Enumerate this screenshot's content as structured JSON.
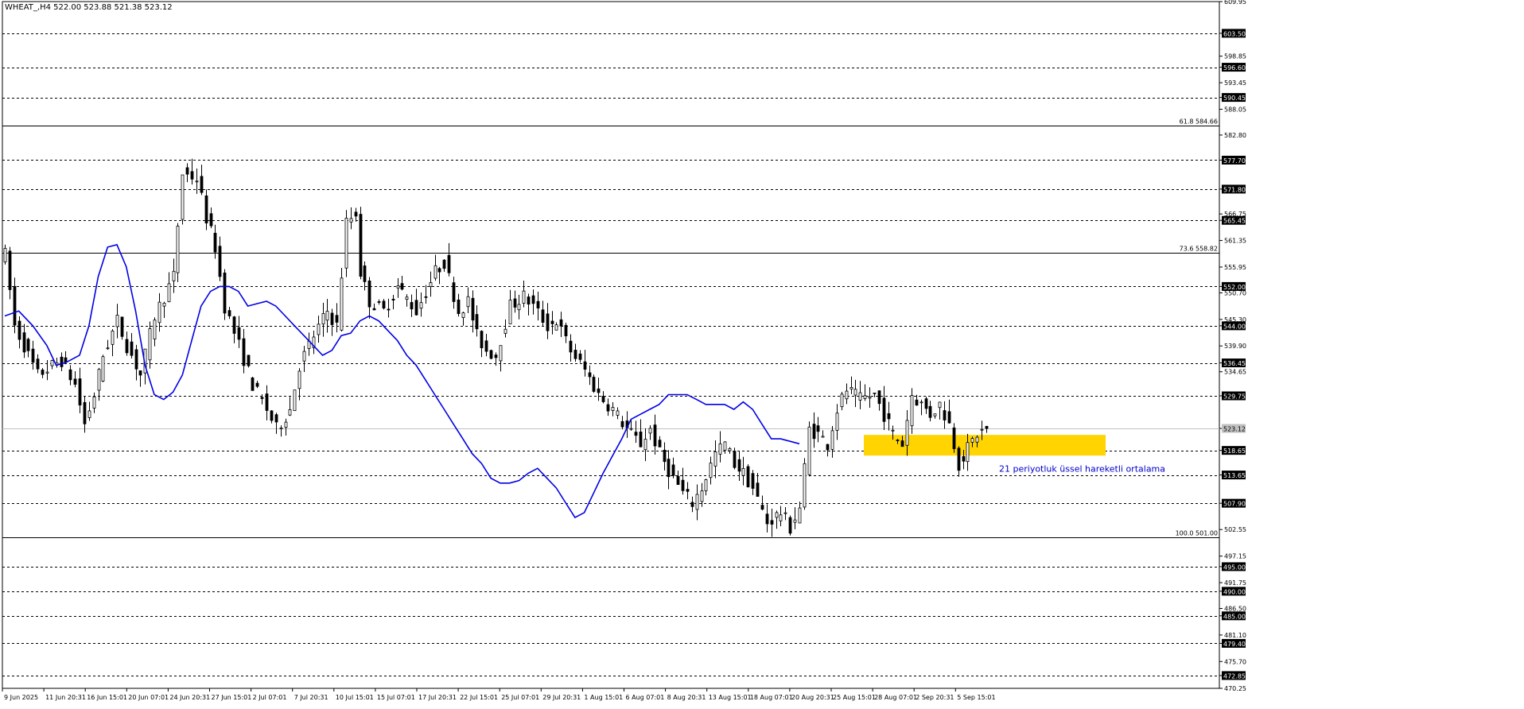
{
  "chart_data": {
    "type": "candlestick",
    "title": "WHEAT_,H4  522.00 523.88 521.38 523.12",
    "y_range": [
      470.25,
      609.95
    ],
    "y_ticks": [
      "609.95",
      "603.50",
      "598.85",
      "596.60",
      "593.45",
      "590.45",
      "588.05",
      "582.80",
      "577.70",
      "571.80",
      "566.75",
      "565.45",
      "561.35",
      "555.95",
      "552.00",
      "550.70",
      "545.30",
      "544.00",
      "539.90",
      "536.45",
      "534.65",
      "529.75",
      "523.12",
      "518.65",
      "513.65",
      "507.90",
      "502.55",
      "497.15",
      "495.00",
      "491.75",
      "490.00",
      "486.50",
      "485.00",
      "481.10",
      "479.40",
      "475.70",
      "472.85",
      "470.25"
    ],
    "x_ticks": [
      "9 Jun 2025",
      "11 Jun 20:31",
      "16 Jun 15:01",
      "20 Jun 07:01",
      "24 Jun 20:31",
      "27 Jun 15:01",
      "2 Jul 07:01",
      "7 Jul 20:31",
      "10 Jul 15:01",
      "15 Jul 07:01",
      "17 Jul 20:31",
      "22 Jul 15:01",
      "25 Jul 07:01",
      "29 Jul 20:31",
      "1 Aug 15:01",
      "6 Aug 07:01",
      "8 Aug 20:31",
      "13 Aug 15:01",
      "18 Aug 07:01",
      "20 Aug 20:31",
      "25 Aug 15:01",
      "28 Aug 07:01",
      "2 Sep 20:31",
      "5 Sep 15:01"
    ],
    "dashed_levels": [
      "603.50",
      "596.60",
      "590.45",
      "577.70",
      "571.80",
      "565.45",
      "552.00",
      "544.00",
      "536.45",
      "529.75",
      "518.65",
      "513.65",
      "507.90",
      "495.00",
      "490.00",
      "485.00",
      "479.40",
      "472.85"
    ],
    "current_price": "523.12",
    "fibonacci": [
      {
        "label": "61.8 584.66",
        "price": 584.66
      },
      {
        "label": "73.6 558.82",
        "price": 558.82
      },
      {
        "label": "100.0 501.00",
        "price": 501.0
      }
    ],
    "ema_annotation": "21 periyotluk üssel hareketli ortalama",
    "highlight_zone": {
      "from_price": 517.6,
      "to_price": 521.8,
      "color": "#ffd400"
    },
    "colors": {
      "background": "#ffffff",
      "candle": "#000000",
      "ema": "#0000e6",
      "grid": "#000000",
      "current_line": "#c0c0c0",
      "annotation_text": "#0000cc"
    },
    "segments": [
      [
        0,
        558.5
      ],
      [
        2,
        544
      ],
      [
        7,
        534
      ],
      [
        12,
        537
      ],
      [
        15,
        532
      ],
      [
        17,
        524
      ],
      [
        19,
        530
      ],
      [
        21,
        538
      ],
      [
        24,
        545
      ],
      [
        26,
        540
      ],
      [
        29,
        534
      ],
      [
        32,
        546
      ],
      [
        36,
        554
      ],
      [
        38,
        575
      ],
      [
        41,
        574
      ],
      [
        43,
        566
      ],
      [
        45,
        560
      ],
      [
        47,
        548
      ],
      [
        50,
        540
      ],
      [
        53,
        532
      ],
      [
        56,
        527
      ],
      [
        58,
        523
      ],
      [
        61,
        527
      ],
      [
        63,
        536
      ],
      [
        66,
        542
      ],
      [
        69,
        547
      ],
      [
        71,
        544
      ],
      [
        73,
        565
      ],
      [
        75,
        567
      ],
      [
        76,
        555
      ],
      [
        78,
        549
      ],
      [
        81,
        547
      ],
      [
        84,
        552
      ],
      [
        88,
        547
      ],
      [
        92,
        555
      ],
      [
        94,
        557
      ],
      [
        97,
        547
      ],
      [
        99,
        549
      ],
      [
        101,
        542
      ],
      [
        103,
        539
      ],
      [
        105,
        538
      ],
      [
        108,
        548
      ],
      [
        111,
        550
      ],
      [
        113,
        548
      ],
      [
        116,
        544
      ],
      [
        118,
        545
      ],
      [
        121,
        539
      ],
      [
        124,
        535
      ],
      [
        127,
        530
      ],
      [
        130,
        527
      ],
      [
        133,
        523
      ],
      [
        136,
        520
      ],
      [
        138,
        523
      ],
      [
        140,
        518
      ],
      [
        143,
        513
      ],
      [
        145,
        510
      ],
      [
        147,
        508
      ],
      [
        149,
        511
      ],
      [
        152,
        518
      ],
      [
        154,
        520
      ],
      [
        156,
        516
      ],
      [
        158,
        514
      ],
      [
        160,
        511
      ],
      [
        163,
        504
      ],
      [
        166,
        506
      ],
      [
        168,
        503
      ],
      [
        170,
        507
      ],
      [
        172,
        523
      ],
      [
        174,
        522
      ],
      [
        176,
        520
      ],
      [
        178,
        527
      ],
      [
        180,
        531
      ],
      [
        183,
        529
      ],
      [
        186,
        530
      ],
      [
        188,
        526
      ],
      [
        190,
        522
      ],
      [
        192,
        520
      ],
      [
        194,
        530
      ],
      [
        196,
        528
      ],
      [
        198,
        526
      ],
      [
        200,
        528
      ],
      [
        202,
        524
      ],
      [
        204,
        516
      ],
      [
        206,
        519
      ],
      [
        208,
        522
      ],
      [
        210,
        523
      ]
    ],
    "ema": [
      [
        0,
        546
      ],
      [
        3,
        547
      ],
      [
        6,
        544
      ],
      [
        9,
        540
      ],
      [
        11,
        536
      ],
      [
        13,
        536.5
      ],
      [
        16,
        538
      ],
      [
        18,
        544
      ],
      [
        20,
        554
      ],
      [
        22,
        560
      ],
      [
        24,
        560.5
      ],
      [
        26,
        556
      ],
      [
        28,
        547
      ],
      [
        30,
        536
      ],
      [
        32,
        530
      ],
      [
        34,
        529
      ],
      [
        36,
        530.5
      ],
      [
        38,
        534
      ],
      [
        40,
        541
      ],
      [
        42,
        548
      ],
      [
        44,
        551
      ],
      [
        46,
        552
      ],
      [
        48,
        552
      ],
      [
        50,
        551
      ],
      [
        52,
        548
      ],
      [
        54,
        548.5
      ],
      [
        56,
        549
      ],
      [
        58,
        548
      ],
      [
        60,
        546
      ],
      [
        62,
        544
      ],
      [
        64,
        542
      ],
      [
        66,
        540
      ],
      [
        68,
        538
      ],
      [
        70,
        539
      ],
      [
        72,
        542
      ],
      [
        74,
        542.5
      ],
      [
        76,
        545
      ],
      [
        78,
        546
      ],
      [
        80,
        545
      ],
      [
        82,
        543
      ],
      [
        84,
        541
      ],
      [
        86,
        538
      ],
      [
        88,
        536
      ],
      [
        90,
        533
      ],
      [
        92,
        530
      ],
      [
        94,
        527
      ],
      [
        96,
        524
      ],
      [
        98,
        521
      ],
      [
        100,
        518
      ],
      [
        102,
        516
      ],
      [
        104,
        513
      ],
      [
        106,
        512
      ],
      [
        108,
        512
      ],
      [
        110,
        512.5
      ],
      [
        112,
        514
      ],
      [
        114,
        515
      ],
      [
        116,
        513
      ],
      [
        118,
        511
      ],
      [
        120,
        508
      ],
      [
        122,
        505
      ],
      [
        124,
        506
      ],
      [
        126,
        510
      ],
      [
        128,
        514
      ],
      [
        130,
        517.5
      ],
      [
        132,
        521
      ],
      [
        134,
        525
      ],
      [
        136,
        526
      ],
      [
        138,
        527
      ],
      [
        140,
        528
      ],
      [
        142,
        530
      ],
      [
        144,
        530
      ],
      [
        146,
        530
      ],
      [
        148,
        529
      ],
      [
        150,
        528
      ],
      [
        152,
        528
      ],
      [
        154,
        528
      ],
      [
        156,
        527
      ],
      [
        158,
        528.5
      ],
      [
        160,
        527
      ],
      [
        162,
        524
      ],
      [
        164,
        521
      ],
      [
        166,
        521
      ],
      [
        168,
        520.5
      ],
      [
        170,
        520
      ]
    ]
  }
}
